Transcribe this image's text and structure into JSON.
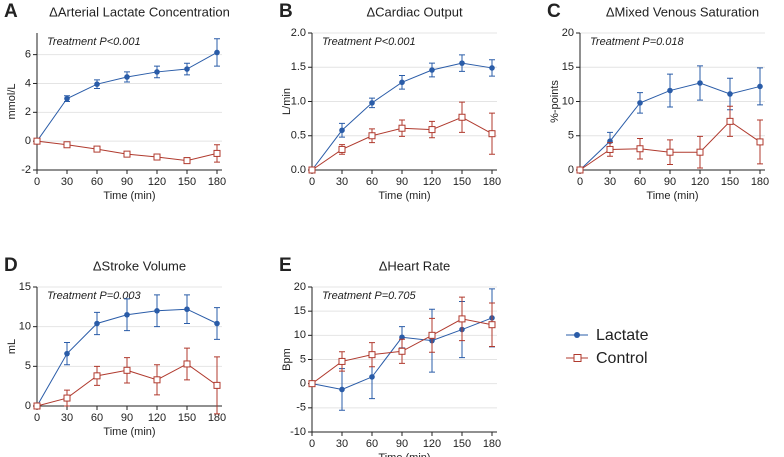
{
  "chart_data": [
    {
      "type": "line",
      "panel": "A",
      "title": "ΔArterial Lactate Concentration",
      "annotation": "Treatment P<0.001",
      "xlabel": "Time (min)",
      "ylabel": "mmol/L",
      "x": [
        0,
        30,
        60,
        90,
        120,
        150,
        180
      ],
      "xlim": [
        0,
        185
      ],
      "xticks": [
        0,
        30,
        60,
        90,
        120,
        150,
        180
      ],
      "ylim": [
        -2,
        7.5
      ],
      "yticks": [
        -2,
        0,
        2,
        4,
        6
      ],
      "grid": true,
      "series": [
        {
          "color": "#2a5ca8",
          "marker": "circle",
          "values": [
            0,
            2.95,
            3.95,
            4.45,
            4.8,
            5.0,
            6.15
          ],
          "errors": [
            0,
            0.2,
            0.3,
            0.35,
            0.4,
            0.4,
            0.95
          ]
        },
        {
          "color": "#b03a2e",
          "marker": "square",
          "values": [
            0,
            -0.25,
            -0.55,
            -0.9,
            -1.1,
            -1.35,
            -0.85
          ],
          "errors": [
            0,
            0.1,
            0.1,
            0.15,
            0.15,
            0.2,
            0.6
          ]
        }
      ]
    },
    {
      "type": "line",
      "panel": "B",
      "title": "ΔCardiac Output",
      "annotation": "Treatment P<0.001",
      "xlabel": "Time (min)",
      "ylabel": "L/min",
      "x": [
        0,
        30,
        60,
        90,
        120,
        150,
        180
      ],
      "xlim": [
        0,
        185
      ],
      "xticks": [
        0,
        30,
        60,
        90,
        120,
        150,
        180
      ],
      "ylim": [
        0,
        2
      ],
      "yticks": [
        {
          "value": 0,
          "label": "0.0"
        },
        0.5,
        {
          "value": 1,
          "label": "1.0"
        },
        1.5,
        {
          "value": 2,
          "label": "2.0"
        }
      ],
      "grid": true,
      "series": [
        {
          "color": "#2a5ca8",
          "marker": "circle",
          "values": [
            0,
            0.58,
            0.98,
            1.28,
            1.46,
            1.56,
            1.49
          ],
          "errors": [
            0,
            0.1,
            0.07,
            0.1,
            0.1,
            0.12,
            0.12
          ]
        },
        {
          "color": "#b03a2e",
          "marker": "square",
          "values": [
            0,
            0.3,
            0.5,
            0.61,
            0.59,
            0.77,
            0.53
          ],
          "errors": [
            0,
            0.07,
            0.1,
            0.12,
            0.12,
            0.22,
            0.3
          ]
        }
      ]
    },
    {
      "type": "line",
      "panel": "C",
      "title": "ΔMixed Venous Saturation",
      "annotation": "Treatment P=0.018",
      "xlabel": "Time (min)",
      "ylabel": "%-points",
      "x": [
        0,
        30,
        60,
        90,
        120,
        150,
        180
      ],
      "xlim": [
        0,
        185
      ],
      "xticks": [
        0,
        30,
        60,
        90,
        120,
        150,
        180
      ],
      "ylim": [
        0,
        20
      ],
      "yticks": [
        0,
        5,
        10,
        15,
        20
      ],
      "grid": true,
      "series": [
        {
          "color": "#2a5ca8",
          "marker": "circle",
          "values": [
            0,
            4.2,
            9.8,
            11.6,
            12.7,
            11.1,
            12.2
          ],
          "errors": [
            0,
            1.3,
            1.5,
            2.4,
            2.5,
            2.3,
            2.7
          ]
        },
        {
          "color": "#b03a2e",
          "marker": "square",
          "values": [
            0,
            3.0,
            3.1,
            2.6,
            2.6,
            7.1,
            4.1
          ],
          "errors": [
            0,
            1.0,
            1.5,
            1.8,
            2.3,
            2.2,
            3.2
          ]
        }
      ]
    },
    {
      "type": "line",
      "panel": "D",
      "title": "ΔStroke Volume",
      "annotation": "Treatment P=0.003",
      "xlabel": "Time (min)",
      "ylabel": "mL",
      "x": [
        0,
        30,
        60,
        90,
        120,
        150,
        180
      ],
      "xlim": [
        0,
        185
      ],
      "xticks": [
        0,
        30,
        60,
        90,
        120,
        150,
        180
      ],
      "ylim": [
        0,
        15
      ],
      "yticks": [
        0,
        5,
        10,
        15
      ],
      "grid": true,
      "series": [
        {
          "color": "#2a5ca8",
          "marker": "circle",
          "values": [
            0,
            6.6,
            10.4,
            11.5,
            12.0,
            12.2,
            10.4
          ],
          "errors": [
            0,
            1.4,
            1.4,
            2.0,
            2.0,
            1.8,
            2.0
          ]
        },
        {
          "color": "#b03a2e",
          "marker": "square",
          "values": [
            0,
            1.0,
            3.8,
            4.5,
            3.3,
            5.3,
            2.6
          ],
          "errors": [
            0,
            1.0,
            1.2,
            1.6,
            1.9,
            2.0,
            3.6
          ]
        }
      ]
    },
    {
      "type": "line",
      "panel": "E",
      "title": "ΔHeart Rate",
      "annotation": "Treatment P=0.705",
      "xlabel": "Time (min)",
      "ylabel": "Bpm",
      "x": [
        0,
        30,
        60,
        90,
        120,
        150,
        180
      ],
      "xlim": [
        0,
        185
      ],
      "xticks": [
        0,
        30,
        60,
        90,
        120,
        150,
        180
      ],
      "ylim": [
        -10,
        20
      ],
      "yticks": [
        -10,
        -5,
        0,
        5,
        10,
        15,
        20
      ],
      "grid": true,
      "legend": "right",
      "series": [
        {
          "name": "Lactate",
          "color": "#2a5ca8",
          "marker": "circle",
          "values": [
            0,
            -1.2,
            1.4,
            9.6,
            8.9,
            11.2,
            13.6
          ],
          "errors": [
            0,
            4.3,
            4.5,
            2.2,
            6.5,
            5.8,
            6.0
          ]
        },
        {
          "name": "Control",
          "color": "#b03a2e",
          "marker": "square",
          "values": [
            0,
            4.6,
            6.0,
            6.7,
            10.0,
            13.4,
            12.2
          ],
          "errors": [
            0,
            2.0,
            2.5,
            2.5,
            3.5,
            4.5,
            4.5
          ]
        }
      ]
    }
  ]
}
